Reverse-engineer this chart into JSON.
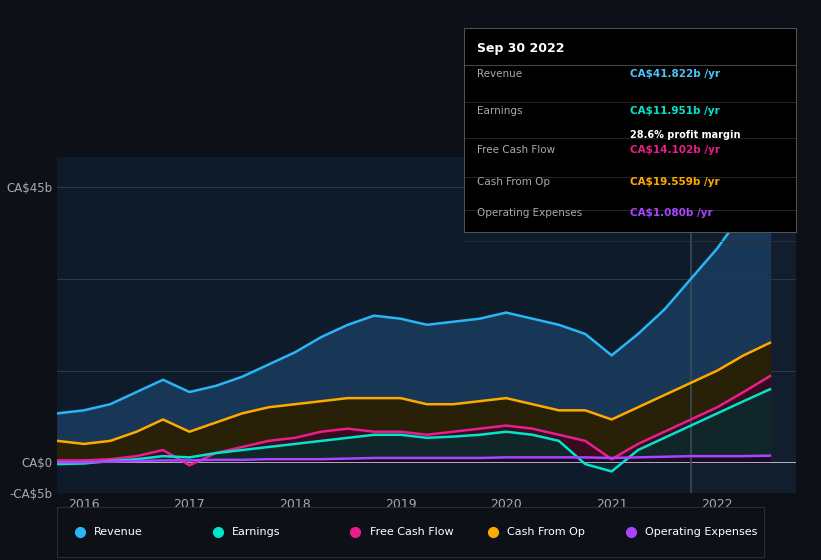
{
  "bg_color": "#0d1117",
  "plot_bg_color": "#0d1b2a",
  "title": "Sep 30 2022",
  "info": {
    "Revenue": {
      "value": "CA$41.822b /yr",
      "color": "#4fc3f7"
    },
    "Earnings": {
      "value": "CA$11.951b /yr",
      "color": "#00e5cc"
    },
    "Free Cash Flow": {
      "value": "CA$14.102b /yr",
      "color": "#e91e8c"
    },
    "Cash From Op": {
      "value": "CA$19.559b /yr",
      "color": "#ffaa00"
    },
    "Operating Expenses": {
      "value": "CA$1.080b /yr",
      "color": "#aa44ff"
    }
  },
  "series": {
    "Revenue": {
      "color": "#29b6f6",
      "fill_color": "#1a3a5c",
      "x": [
        2015.75,
        2016.0,
        2016.25,
        2016.5,
        2016.75,
        2017.0,
        2017.25,
        2017.5,
        2017.75,
        2018.0,
        2018.25,
        2018.5,
        2018.75,
        2019.0,
        2019.25,
        2019.5,
        2019.75,
        2020.0,
        2020.25,
        2020.5,
        2020.75,
        2021.0,
        2021.25,
        2021.5,
        2021.75,
        2022.0,
        2022.25,
        2022.5
      ],
      "y": [
        8.0,
        8.5,
        9.5,
        11.5,
        13.5,
        11.5,
        12.5,
        14.0,
        16.0,
        18.0,
        20.5,
        22.5,
        24.0,
        23.5,
        22.5,
        23.0,
        23.5,
        24.5,
        23.5,
        22.5,
        21.0,
        17.5,
        21.0,
        25.0,
        30.0,
        35.0,
        41.0,
        41.822
      ]
    },
    "Earnings": {
      "color": "#00e5cc",
      "fill_color": "#0d2a2a",
      "x": [
        2015.75,
        2016.0,
        2016.25,
        2016.5,
        2016.75,
        2017.0,
        2017.25,
        2017.5,
        2017.75,
        2018.0,
        2018.25,
        2018.5,
        2018.75,
        2019.0,
        2019.25,
        2019.5,
        2019.75,
        2020.0,
        2020.25,
        2020.5,
        2020.75,
        2021.0,
        2021.25,
        2021.5,
        2021.75,
        2022.0,
        2022.25,
        2022.5
      ],
      "y": [
        -0.3,
        -0.2,
        0.2,
        0.5,
        1.0,
        0.8,
        1.5,
        2.0,
        2.5,
        3.0,
        3.5,
        4.0,
        4.5,
        4.5,
        4.0,
        4.2,
        4.5,
        5.0,
        4.5,
        3.5,
        -0.3,
        -1.5,
        2.0,
        4.0,
        6.0,
        8.0,
        10.0,
        11.951
      ]
    },
    "Free Cash Flow": {
      "color": "#e91e8c",
      "fill_color": "#3a0a20",
      "x": [
        2015.75,
        2016.0,
        2016.25,
        2016.5,
        2016.75,
        2017.0,
        2017.25,
        2017.5,
        2017.75,
        2018.0,
        2018.25,
        2018.5,
        2018.75,
        2019.0,
        2019.25,
        2019.5,
        2019.75,
        2020.0,
        2020.25,
        2020.5,
        2020.75,
        2021.0,
        2021.25,
        2021.5,
        2021.75,
        2022.0,
        2022.25,
        2022.5
      ],
      "y": [
        0.3,
        0.3,
        0.5,
        1.0,
        2.0,
        -0.5,
        1.5,
        2.5,
        3.5,
        4.0,
        5.0,
        5.5,
        5.0,
        5.0,
        4.5,
        5.0,
        5.5,
        6.0,
        5.5,
        4.5,
        3.5,
        0.5,
        3.0,
        5.0,
        7.0,
        9.0,
        11.5,
        14.102
      ]
    },
    "Cash From Op": {
      "color": "#ffaa00",
      "fill_color": "#2a1f00",
      "x": [
        2015.75,
        2016.0,
        2016.25,
        2016.5,
        2016.75,
        2017.0,
        2017.25,
        2017.5,
        2017.75,
        2018.0,
        2018.25,
        2018.5,
        2018.75,
        2019.0,
        2019.25,
        2019.5,
        2019.75,
        2020.0,
        2020.25,
        2020.5,
        2020.75,
        2021.0,
        2021.25,
        2021.5,
        2021.75,
        2022.0,
        2022.25,
        2022.5
      ],
      "y": [
        3.5,
        3.0,
        3.5,
        5.0,
        7.0,
        5.0,
        6.5,
        8.0,
        9.0,
        9.5,
        10.0,
        10.5,
        10.5,
        10.5,
        9.5,
        9.5,
        10.0,
        10.5,
        9.5,
        8.5,
        8.5,
        7.0,
        9.0,
        11.0,
        13.0,
        15.0,
        17.5,
        19.559
      ]
    },
    "Operating Expenses": {
      "color": "#aa44ff",
      "fill_color": "#1a0a2a",
      "x": [
        2015.75,
        2016.0,
        2016.25,
        2016.5,
        2016.75,
        2017.0,
        2017.25,
        2017.5,
        2017.75,
        2018.0,
        2018.25,
        2018.5,
        2018.75,
        2019.0,
        2019.25,
        2019.5,
        2019.75,
        2020.0,
        2020.25,
        2020.5,
        2020.75,
        2021.0,
        2021.25,
        2021.5,
        2021.75,
        2022.0,
        2022.25,
        2022.5
      ],
      "y": [
        0.0,
        0.0,
        0.1,
        0.2,
        0.3,
        0.3,
        0.4,
        0.4,
        0.5,
        0.5,
        0.5,
        0.6,
        0.7,
        0.7,
        0.7,
        0.7,
        0.7,
        0.8,
        0.8,
        0.8,
        0.8,
        0.7,
        0.8,
        0.9,
        1.0,
        1.0,
        1.0,
        1.08
      ]
    }
  },
  "legend": [
    {
      "label": "Revenue",
      "color": "#29b6f6"
    },
    {
      "label": "Earnings",
      "color": "#00e5cc"
    },
    {
      "label": "Free Cash Flow",
      "color": "#e91e8c"
    },
    {
      "label": "Cash From Op",
      "color": "#ffaa00"
    },
    {
      "label": "Operating Expenses",
      "color": "#aa44ff"
    }
  ]
}
